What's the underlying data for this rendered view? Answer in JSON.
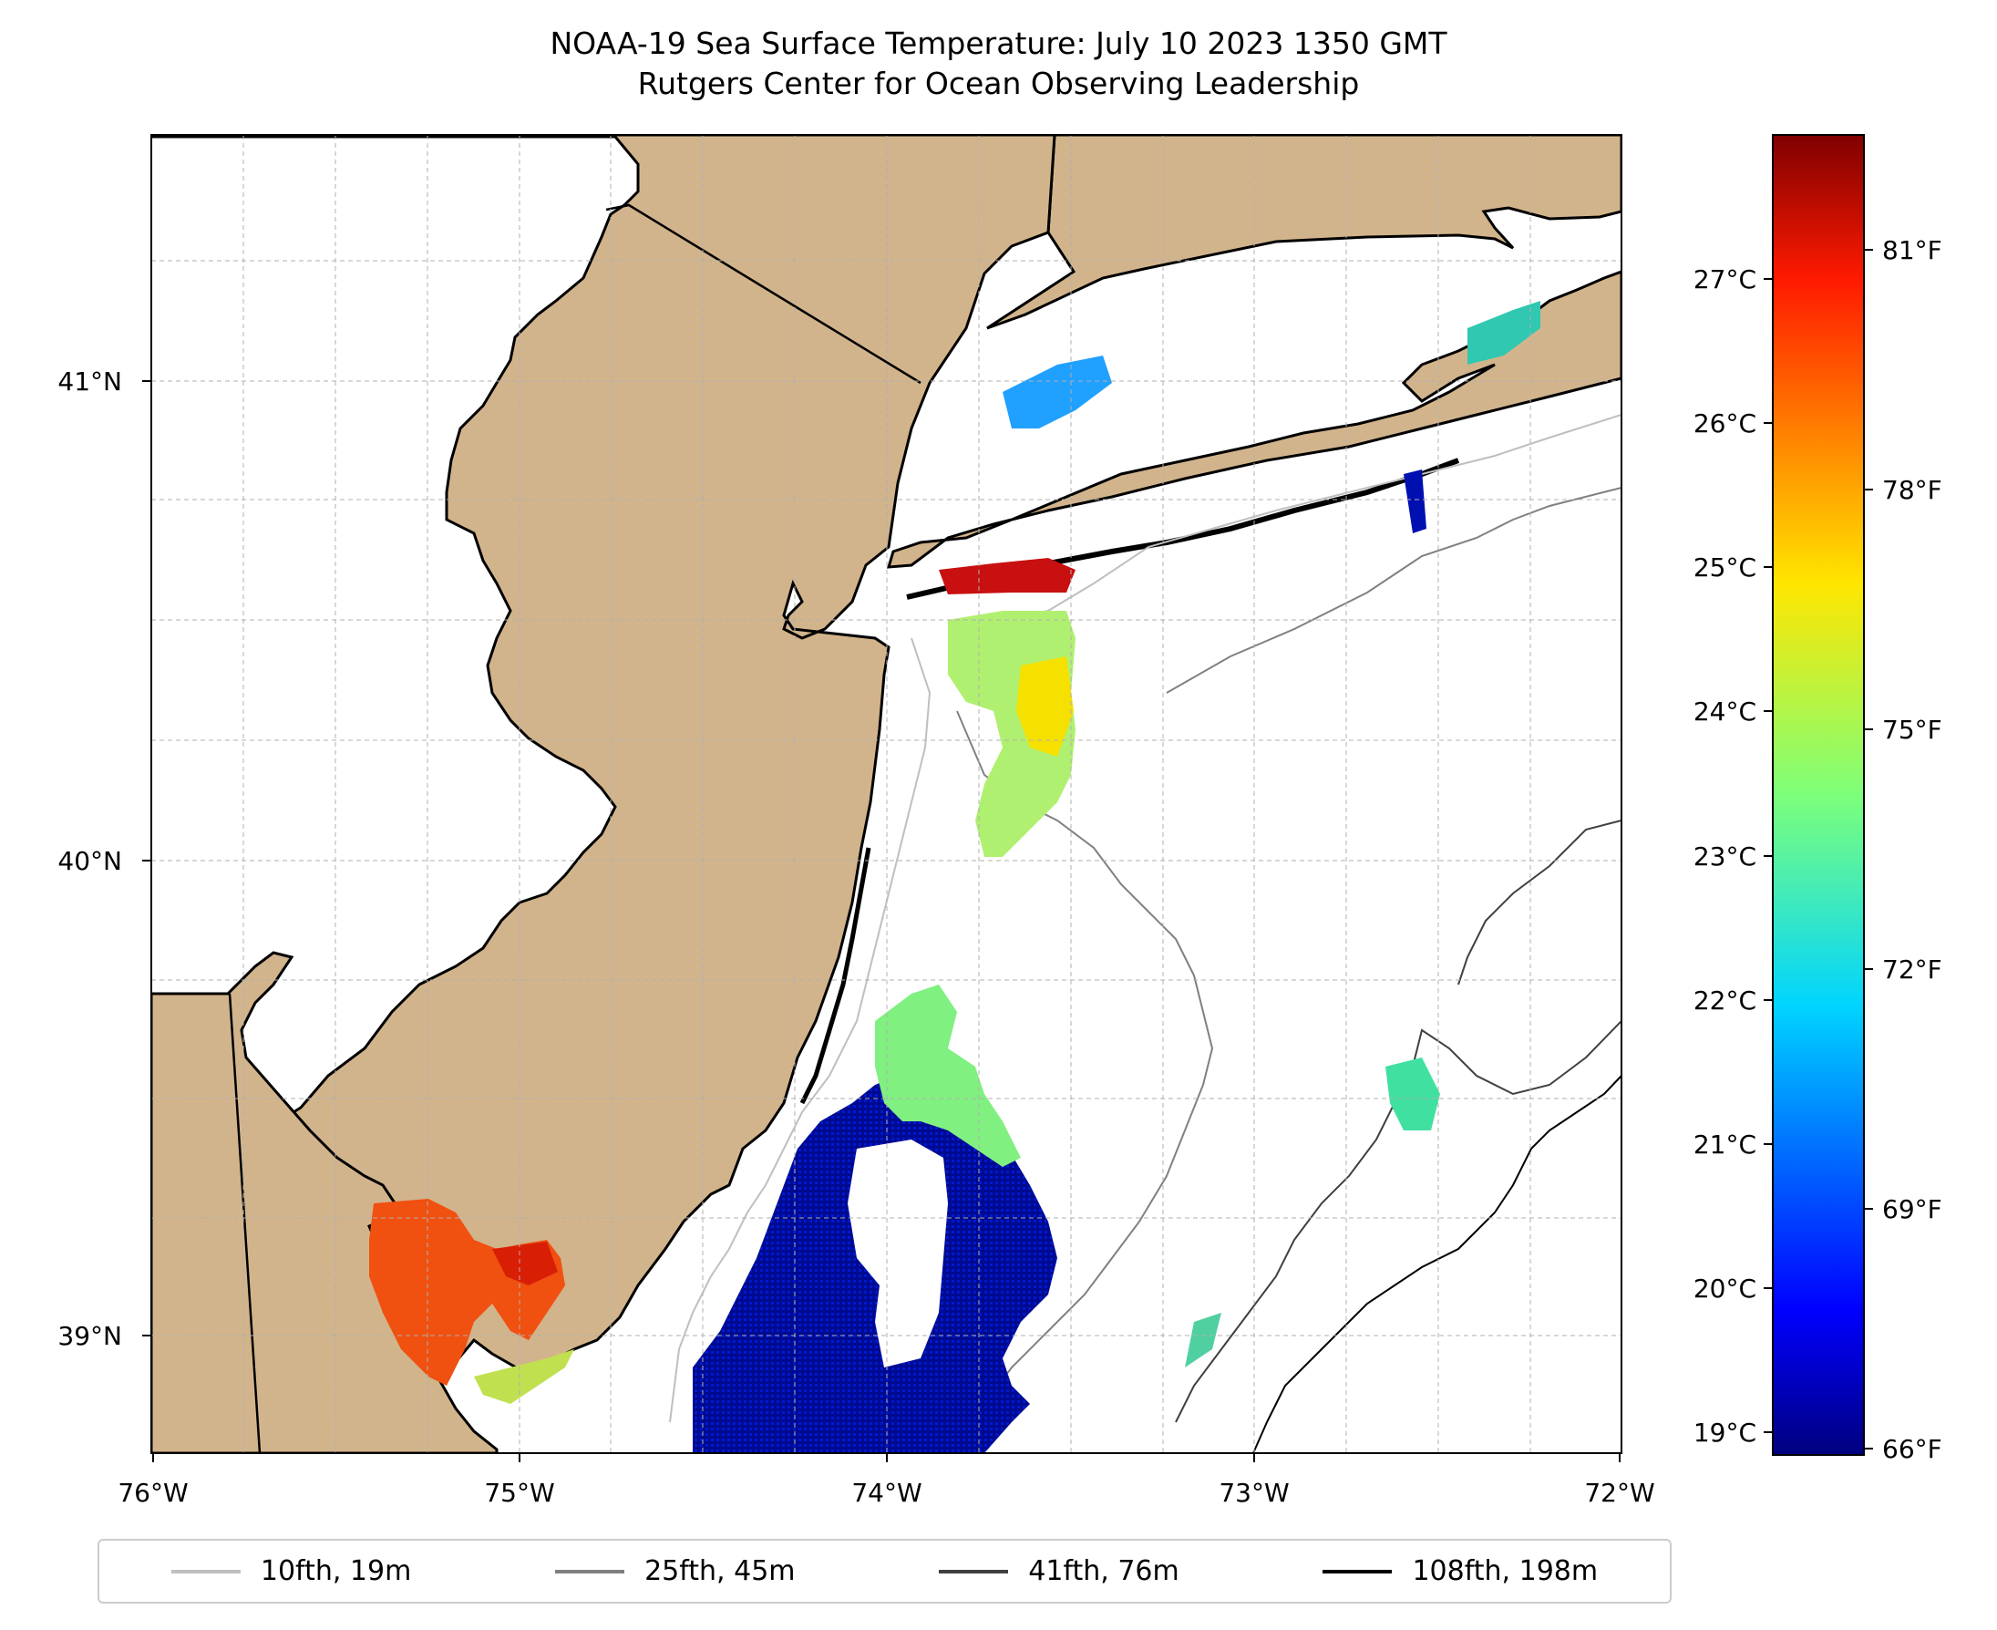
{
  "title": {
    "line1": "NOAA-19 Sea Surface Temperature: July 10 2023 1350 GMT",
    "line2": "Rutgers Center for Ocean Observing Leadership"
  },
  "map": {
    "lon_range": [
      -76,
      -72
    ],
    "lat_range": [
      38.7,
      41.5
    ],
    "land_color": "#d2b48c",
    "ocean_color": "#ffffff",
    "x_ticks": [
      "76°W",
      "75°W",
      "74°W",
      "73°W",
      "72°W"
    ],
    "y_ticks": [
      "41°N",
      "40°N",
      "39°N"
    ],
    "grid": "dashed gray"
  },
  "colorbar": {
    "colormap": "jet",
    "celsius_ticks": [
      "27°C",
      "26°C",
      "25°C",
      "24°C",
      "23°C",
      "22°C",
      "21°C",
      "20°C",
      "19°C"
    ],
    "fahrenheit_ticks": [
      "81°F",
      "78°F",
      "75°F",
      "72°F",
      "69°F",
      "66°F"
    ],
    "range_c": [
      18.9,
      28.2
    ]
  },
  "legend": {
    "items": [
      {
        "label": "10fth, 19m",
        "color": "#bfbfbf"
      },
      {
        "label": "25fth, 45m",
        "color": "#808080"
      },
      {
        "label": "41fth, 76m",
        "color": "#404040"
      },
      {
        "label": "108fth, 198m",
        "color": "#000000"
      }
    ]
  }
}
